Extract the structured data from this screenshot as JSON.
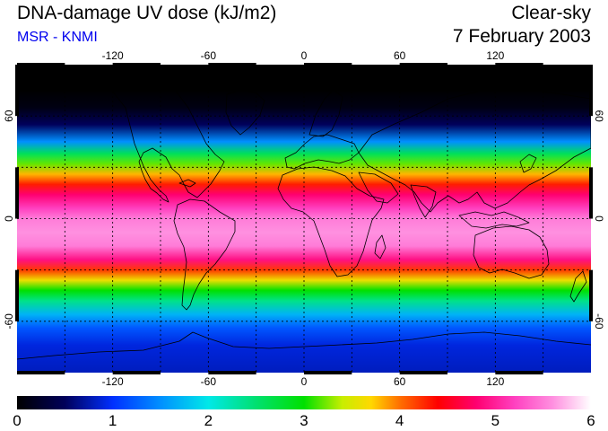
{
  "header": {
    "title": "DNA-damage UV dose (kJ/m2)",
    "subtitle": "MSR - KNMI",
    "condition": "Clear-sky",
    "date": "7 February 2003"
  },
  "map": {
    "projection": "equirectangular",
    "lon_range": [
      -180,
      180
    ],
    "lat_range": [
      -90,
      90
    ],
    "lon_ticks": [
      -120,
      -60,
      0,
      60,
      120
    ],
    "lat_ticks": [
      60,
      0,
      -60
    ],
    "lon_tick_labels": [
      "-120",
      "-60",
      "0",
      "60",
      "120"
    ],
    "lat_tick_labels": [
      "60",
      "0",
      "-60"
    ],
    "grid_spacing_deg": 30,
    "grid_style": "dotted",
    "land_outline_color": "#000000",
    "dose_profile_by_latitude": [
      {
        "lat": 90,
        "dose": 0.0
      },
      {
        "lat": 75,
        "dose": 0.0
      },
      {
        "lat": 65,
        "dose": 0.1
      },
      {
        "lat": 55,
        "dose": 0.5
      },
      {
        "lat": 45,
        "dose": 1.5
      },
      {
        "lat": 38,
        "dose": 2.6
      },
      {
        "lat": 32,
        "dose": 3.2
      },
      {
        "lat": 26,
        "dose": 3.8
      },
      {
        "lat": 20,
        "dose": 4.3
      },
      {
        "lat": 14,
        "dose": 4.8
      },
      {
        "lat": 6,
        "dose": 5.2
      },
      {
        "lat": 0,
        "dose": 5.5
      },
      {
        "lat": -8,
        "dose": 5.6
      },
      {
        "lat": -16,
        "dose": 5.5
      },
      {
        "lat": -24,
        "dose": 4.9
      },
      {
        "lat": -30,
        "dose": 4.2
      },
      {
        "lat": -36,
        "dose": 3.6
      },
      {
        "lat": -42,
        "dose": 3.0
      },
      {
        "lat": -48,
        "dose": 2.4
      },
      {
        "lat": -56,
        "dose": 1.7
      },
      {
        "lat": -64,
        "dose": 1.2
      },
      {
        "lat": -74,
        "dose": 0.9
      },
      {
        "lat": -90,
        "dose": 0.8
      }
    ]
  },
  "colorbar": {
    "min": 0,
    "max": 6,
    "tick_values": [
      0,
      1,
      2,
      3,
      4,
      5,
      6
    ],
    "tick_labels": [
      "0",
      "1",
      "2",
      "3",
      "4",
      "5",
      "6"
    ],
    "stops": [
      {
        "value": 0.0,
        "color": "#000000"
      },
      {
        "value": 0.5,
        "color": "#00005a"
      },
      {
        "value": 1.0,
        "color": "#0030ff"
      },
      {
        "value": 1.5,
        "color": "#0090ff"
      },
      {
        "value": 2.0,
        "color": "#00e8e8"
      },
      {
        "value": 2.5,
        "color": "#00e070"
      },
      {
        "value": 3.0,
        "color": "#00e000"
      },
      {
        "value": 3.4,
        "color": "#c8ee00"
      },
      {
        "value": 3.7,
        "color": "#ffd800"
      },
      {
        "value": 4.0,
        "color": "#ff7000"
      },
      {
        "value": 4.4,
        "color": "#ff0000"
      },
      {
        "value": 4.8,
        "color": "#ff0070"
      },
      {
        "value": 5.2,
        "color": "#ff40c0"
      },
      {
        "value": 5.6,
        "color": "#ff90e0"
      },
      {
        "value": 6.0,
        "color": "#ffffff"
      }
    ]
  }
}
